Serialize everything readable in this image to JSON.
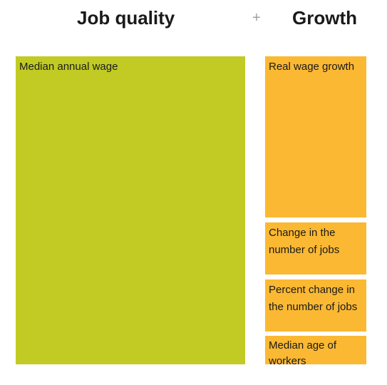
{
  "header": {
    "left": "Job quality",
    "plus": "+",
    "right": "Growth"
  },
  "left_box": {
    "label": "Median annual wage"
  },
  "right_boxes": [
    {
      "label": "Real wage growth"
    },
    {
      "label": "Change in the number of jobs"
    },
    {
      "label": "Percent change in the number of jobs"
    },
    {
      "label": "Median age of workers"
    }
  ]
}
